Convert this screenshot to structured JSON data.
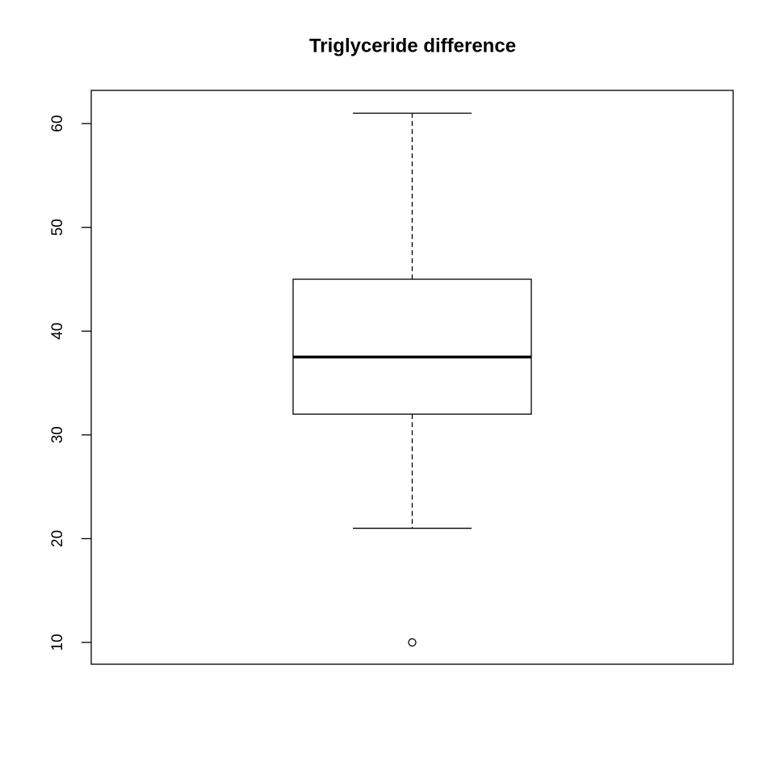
{
  "chart_data": {
    "type": "box",
    "title": "Triglyceride difference",
    "boxes": [
      {
        "whisker_low": 21,
        "q1": 32,
        "median": 37.5,
        "q3": 45,
        "whisker_high": 61,
        "outliers": [
          10
        ]
      }
    ],
    "ylim": [
      7.9,
      63.2
    ],
    "yticks": [
      10,
      20,
      30,
      40,
      50,
      60
    ],
    "color": "#000000"
  }
}
